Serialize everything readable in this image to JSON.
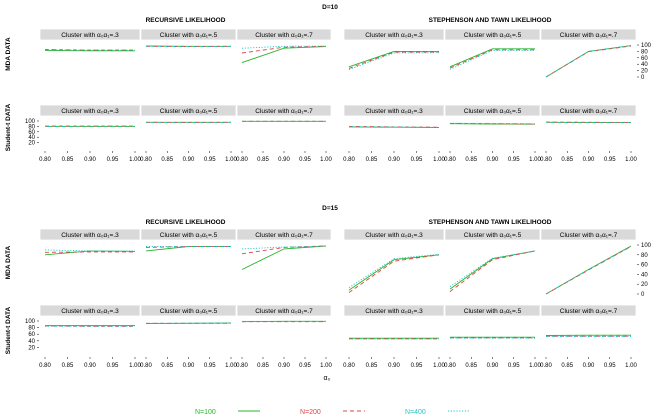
{
  "chart_data": {
    "type": "line",
    "x": [
      0.8,
      0.9,
      1.0
    ],
    "x_tick_labels": [
      "0.80",
      "0.85",
      "0.90",
      "0.95",
      "1.00"
    ],
    "y_tick_labels": [
      "0",
      "20",
      "40",
      "60",
      "80",
      "100"
    ],
    "ylim": [
      0,
      100
    ],
    "xlabel": "α₀",
    "row_labels": [
      "MDA DATA",
      "Student-t DATA"
    ],
    "method_titles": [
      "RECURSIVE LIKELIHOOD",
      "STEPHENSON AND TAWN LIKELIHOOD"
    ],
    "cluster_labels": [
      "Cluster with α₀α₁=.3",
      "Cluster with α₀α₁=.5",
      "Cluster with α₀α₁=.7"
    ],
    "series_styles": [
      {
        "name": "N=100",
        "color": "#2bb52b",
        "dash": "none"
      },
      {
        "name": "N=200",
        "color": "#e0434a",
        "dash": "4,3"
      },
      {
        "name": "N=400",
        "color": "#25c7c7",
        "dash": "1.2,1.6"
      }
    ],
    "blocks": [
      {
        "title": "D=10",
        "panels": {
          "recursive_mda": [
            [
              83,
              82,
              82
            ],
            [
              86,
              84,
              84
            ],
            [
              85,
              84,
              84
            ],
            [
              97,
              96,
              96
            ],
            [
              96,
              95,
              96
            ],
            [
              96,
              95,
              95
            ],
            [
              45,
              90,
              95
            ],
            [
              75,
              93,
              96
            ],
            [
              90,
              96,
              97
            ]
          ],
          "st_mda": [
            [
              32,
              80,
              80
            ],
            [
              27,
              78,
              78
            ],
            [
              23,
              75,
              76
            ],
            [
              32,
              88,
              88
            ],
            [
              28,
              85,
              85
            ],
            [
              24,
              83,
              83
            ],
            [
              0,
              80,
              98
            ],
            [
              0,
              79,
              97
            ],
            [
              0,
              80,
              98
            ]
          ],
          "recursive_t": [
            [
              80,
              80,
              80
            ],
            [
              81,
              81,
              81
            ],
            [
              80,
              81,
              81
            ],
            [
              95,
              95,
              95
            ],
            [
              95,
              94,
              95
            ],
            [
              95,
              95,
              95
            ],
            [
              99,
              99,
              99
            ],
            [
              99,
              99,
              99
            ],
            [
              99,
              99,
              99
            ]
          ],
          "st_t": [
            [
              78,
              77,
              76
            ],
            [
              80,
              78,
              77
            ],
            [
              79,
              78,
              76
            ],
            [
              90,
              89,
              88
            ],
            [
              91,
              90,
              89
            ],
            [
              92,
              91,
              90
            ],
            [
              95,
              94,
              94
            ],
            [
              96,
              95,
              94
            ],
            [
              96,
              95,
              95
            ]
          ]
        }
      },
      {
        "title": "D=15",
        "panels": {
          "recursive_mda": [
            [
              80,
              88,
              87
            ],
            [
              85,
              86,
              86
            ],
            [
              90,
              88,
              88
            ],
            [
              88,
              97,
              97
            ],
            [
              95,
              97,
              97
            ],
            [
              97,
              97,
              97
            ],
            [
              50,
              92,
              98
            ],
            [
              82,
              95,
              98
            ],
            [
              92,
              96,
              98
            ]
          ],
          "st_mda": [
            [
              8,
              70,
              80
            ],
            [
              3,
              67,
              80
            ],
            [
              13,
              72,
              81
            ],
            [
              10,
              72,
              88
            ],
            [
              5,
              70,
              88
            ],
            [
              15,
              73,
              88
            ],
            [
              0,
              50,
              98
            ],
            [
              0,
              49,
              97
            ],
            [
              0,
              50,
              97
            ]
          ],
          "recursive_t": [
            [
              86,
              86,
              86
            ],
            [
              85,
              84,
              84
            ],
            [
              84,
              84,
              84
            ],
            [
              92,
              93,
              94
            ],
            [
              93,
              93,
              93
            ],
            [
              93,
              94,
              94
            ],
            [
              98,
              99,
              99
            ],
            [
              98,
              98,
              98
            ],
            [
              99,
              99,
              99
            ]
          ],
          "st_t": [
            [
              48,
              48,
              48
            ],
            [
              46,
              46,
              46
            ],
            [
              45,
              45,
              45
            ],
            [
              51,
              51,
              51
            ],
            [
              49,
              49,
              49
            ],
            [
              48,
              48,
              48
            ],
            [
              56,
              57,
              57
            ],
            [
              54,
              54,
              54
            ],
            [
              53,
              53,
              53
            ]
          ]
        }
      }
    ]
  }
}
